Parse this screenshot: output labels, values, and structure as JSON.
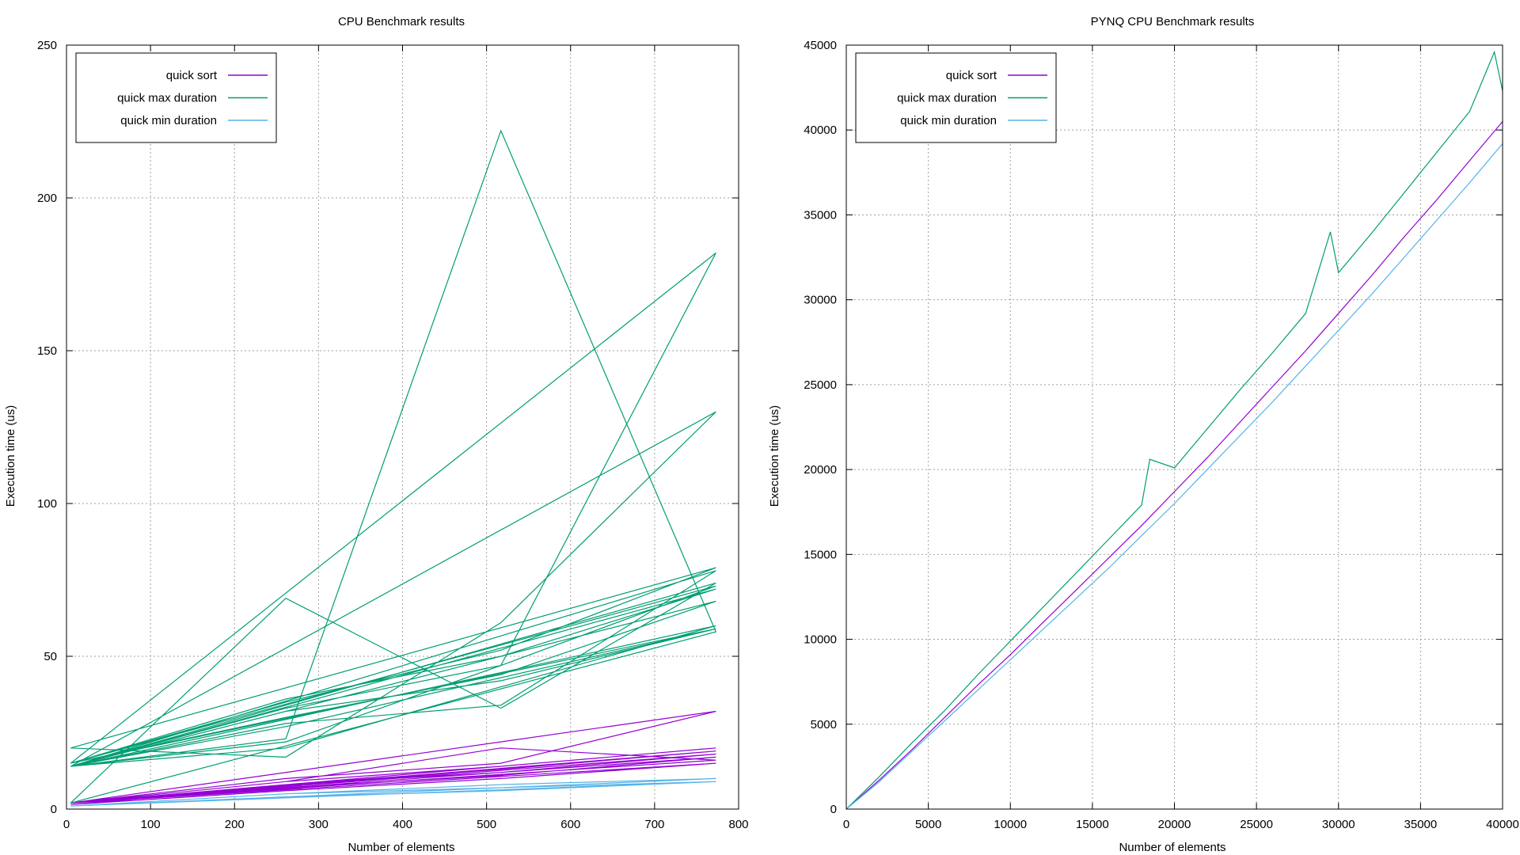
{
  "chart_data": [
    {
      "type": "line",
      "title": "CPU Benchmark results",
      "xlabel": "Number of elements",
      "ylabel": "Execution time (us)",
      "xlim": [
        0,
        800
      ],
      "ylim": [
        0,
        250
      ],
      "xticks": [
        0,
        100,
        200,
        300,
        400,
        500,
        600,
        700,
        800
      ],
      "yticks": [
        0,
        50,
        100,
        150,
        200,
        250
      ],
      "grid": true,
      "legend_position": "top-left",
      "series": [
        {
          "name": "quick sort",
          "color": "#9400d3",
          "x": [
            5,
            261,
            517,
            773,
            5,
            261,
            517,
            773,
            5,
            261,
            517,
            773,
            5,
            261,
            517,
            773,
            5,
            261,
            517,
            773,
            5,
            261,
            517,
            773,
            5,
            261,
            517,
            773,
            5,
            261,
            517,
            773,
            5,
            261,
            517,
            773,
            5,
            261,
            517,
            773
          ],
          "y": [
            2,
            9,
            14,
            20,
            2,
            8,
            13,
            19,
            2,
            8,
            12,
            18,
            2,
            7,
            12,
            17,
            2,
            9,
            20,
            16,
            2,
            10,
            15,
            32,
            2,
            7,
            11,
            17,
            2,
            8,
            13,
            19,
            1.5,
            6,
            10,
            15,
            2,
            7,
            12,
            18
          ]
        },
        {
          "name": "quick max duration",
          "color": "#009e73",
          "x": [
            5,
            261,
            517,
            773,
            5,
            261,
            517,
            773,
            5,
            261,
            517,
            773,
            5,
            261,
            517,
            773,
            5,
            261,
            517,
            773,
            5,
            261,
            517,
            773,
            5,
            261,
            517,
            773,
            5,
            261,
            517,
            773,
            5,
            261,
            517,
            773,
            5,
            261,
            517,
            773,
            5,
            261,
            517,
            773,
            5,
            261,
            517,
            773
          ],
          "y": [
            14,
            23,
            222,
            58,
            2,
            69,
            33,
            74,
            14,
            22,
            47,
            182,
            15,
            35,
            52,
            79,
            20,
            17,
            61,
            130,
            14,
            33,
            47,
            73,
            15,
            30,
            44,
            68,
            14,
            28,
            34,
            78,
            14,
            32,
            42,
            59,
            15,
            36,
            50,
            72,
            14,
            20,
            40,
            60,
            14,
            27,
            43,
            59
          ]
        },
        {
          "name": "quick min duration",
          "color": "#56b4e9",
          "x": [
            5,
            261,
            517,
            773,
            5,
            261,
            517,
            773,
            5,
            261,
            517,
            773,
            5,
            261,
            517,
            773,
            5,
            261,
            517,
            773,
            5,
            261,
            517,
            773
          ],
          "y": [
            1,
            4,
            7,
            10,
            1,
            4,
            6,
            9,
            1,
            5,
            7,
            10,
            1,
            4,
            7,
            9,
            1,
            4,
            6,
            9,
            1,
            5,
            8,
            10
          ]
        }
      ]
    },
    {
      "type": "line",
      "title": "PYNQ CPU Benchmark results",
      "xlabel": "Number of elements",
      "ylabel": "Execution time (us)",
      "xlim": [
        0,
        40000
      ],
      "ylim": [
        0,
        45000
      ],
      "xticks": [
        0,
        5000,
        10000,
        15000,
        20000,
        25000,
        30000,
        35000,
        40000
      ],
      "yticks": [
        0,
        5000,
        10000,
        15000,
        20000,
        25000,
        30000,
        35000,
        40000,
        45000
      ],
      "grid": true,
      "legend_position": "top-left",
      "series": [
        {
          "name": "quick sort",
          "color": "#9400d3",
          "x": [
            0,
            2000,
            4000,
            6000,
            8000,
            10000,
            12000,
            14000,
            16000,
            18000,
            20000,
            22000,
            24000,
            26000,
            28000,
            30000,
            32000,
            34000,
            36000,
            38000,
            40000
          ],
          "y": [
            0,
            1700,
            3500,
            5400,
            7300,
            9100,
            11000,
            12900,
            14800,
            16700,
            18700,
            20700,
            22800,
            24900,
            27000,
            29200,
            31400,
            33700,
            35900,
            38200,
            40500
          ]
        },
        {
          "name": "quick max duration",
          "color": "#009e73",
          "x": [
            0,
            2000,
            4000,
            6000,
            8000,
            10000,
            12000,
            14000,
            16000,
            18000,
            18500,
            20000,
            22000,
            24000,
            26000,
            28000,
            29500,
            30000,
            32000,
            34000,
            36000,
            38000,
            39500,
            40000
          ],
          "y": [
            0,
            1900,
            3900,
            5800,
            7900,
            9900,
            11900,
            13900,
            15900,
            17900,
            20600,
            20100,
            22400,
            24700,
            26900,
            29200,
            34000,
            31600,
            33900,
            36300,
            38700,
            41100,
            44600,
            42300
          ]
        },
        {
          "name": "quick min duration",
          "color": "#56b4e9",
          "x": [
            0,
            2000,
            4000,
            6000,
            8000,
            10000,
            12000,
            14000,
            16000,
            18000,
            20000,
            22000,
            24000,
            26000,
            28000,
            30000,
            32000,
            34000,
            36000,
            38000,
            40000
          ],
          "y": [
            0,
            1600,
            3400,
            5200,
            7000,
            8800,
            10600,
            12400,
            14200,
            16100,
            18000,
            20000,
            22000,
            24000,
            26100,
            28200,
            30300,
            32500,
            34700,
            36900,
            39200
          ]
        }
      ]
    }
  ]
}
